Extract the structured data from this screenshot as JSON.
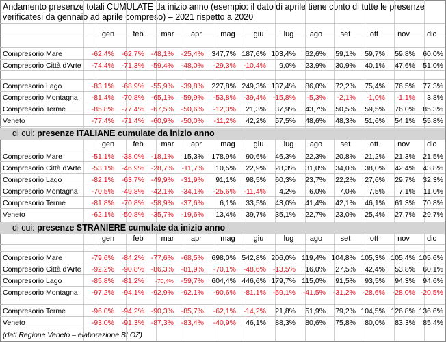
{
  "title": "Andamento presenze totali CUMULATE da inizio anno (esempio: il dato di aprile tiene conto di tutte le presenze verificatesi da gennaio ad aprile compreso) – 2021 rispetto a 2020",
  "months": [
    "gen",
    "feb",
    "mar",
    "apr",
    "mag",
    "giu",
    "lug",
    "ago",
    "set",
    "ott",
    "nov",
    "dic"
  ],
  "sections": [
    {
      "prefix": "",
      "title": "",
      "rows": [
        {
          "label": "Compresorio Mare",
          "values": [
            "-62,4%",
            "-62,7%",
            "-48,1%",
            "-25,4%",
            "347,7%",
            "187,6%",
            "103,4%",
            "62,6%",
            "59,1%",
            "59,7%",
            "59,8%",
            "60,0%"
          ]
        },
        {
          "label": "Compresorio Città d'Arte",
          "values": [
            "-74,4%",
            "-71,3%",
            "-59,4%",
            "-48,0%",
            "-29,3%",
            "-10,4%",
            "9,0%",
            "23,9%",
            "30,9%",
            "40,1%",
            "47,6%",
            "51,0%"
          ]
        },
        {
          "label": "Compresorio Lago",
          "values": [
            "-83,1%",
            "-68,9%",
            "-55,9%",
            "-39,8%",
            "227,8%",
            "249,3%",
            "137,4%",
            "86,0%",
            "72,2%",
            "75,4%",
            "76,5%",
            "77,3%"
          ]
        },
        {
          "label": "Compresorio Montagna",
          "values": [
            "-81,4%",
            "-70,8%",
            "-65,1%",
            "-59,9%",
            "-53,8%",
            "-39,4%",
            "-15,8%",
            "-5,3%",
            "-2,1%",
            "-1,0%",
            "-1,1%",
            "3,8%"
          ]
        },
        {
          "label": "Compresorio Terme",
          "values": [
            "-85,8%",
            "-77,4%",
            "-67,5%",
            "-50,6%",
            "-12,3%",
            "21,3%",
            "37,9%",
            "43,7%",
            "50,5%",
            "59,5%",
            "76,0%",
            "85,3%"
          ]
        },
        {
          "label": "Veneto",
          "values": [
            "-77,4%",
            "-71,4%",
            "-60,9%",
            "-50,0%",
            "-11,2%",
            "42,2%",
            "57,5%",
            "48,6%",
            "48,3%",
            "51,6%",
            "54,1%",
            "55,8%"
          ]
        }
      ]
    },
    {
      "prefix": "di cui: ",
      "title": "presenze ITALIANE cumulate da inizio anno",
      "rows": [
        {
          "label": "Compresorio Mare",
          "values": [
            "-51,1%",
            "-38,0%",
            "-18,1%",
            "15,3%",
            "178,9%",
            "90,6%",
            "46,3%",
            "22,3%",
            "20,8%",
            "21,2%",
            "21,3%",
            "21,5%"
          ]
        },
        {
          "label": "Compresorio Città d'Arte",
          "values": [
            "-53,1%",
            "-46,9%",
            "-28,7%",
            "-11,7%",
            "10,5%",
            "22,9%",
            "28,3%",
            "31,0%",
            "34,0%",
            "38,0%",
            "42,4%",
            "43,8%"
          ]
        },
        {
          "label": "Compresorio Lago",
          "values": [
            "-82,1%",
            "-63,7%",
            "-49,9%",
            "-31,9%",
            "91,1%",
            "98,5%",
            "60,3%",
            "23,7%",
            "22,2%",
            "27,6%",
            "29,7%",
            "32,3%"
          ]
        },
        {
          "label": "Compresorio Montagna",
          "values": [
            "-70,5%",
            "-49,8%",
            "-42,1%",
            "-34,1%",
            "-25,6%",
            "-11,4%",
            "4,2%",
            "6,0%",
            "7,0%",
            "7,5%",
            "7,1%",
            "11,0%"
          ]
        },
        {
          "label": "Compresorio Terme",
          "values": [
            "-81,8%",
            "-70,8%",
            "-58,9%",
            "-37,6%",
            "6,1%",
            "33,5%",
            "43,0%",
            "41,4%",
            "42,1%",
            "46,1%",
            "61,3%",
            "70,8%"
          ]
        },
        {
          "label": "Veneto",
          "values": [
            "-62,1%",
            "-50,8%",
            "-35,7%",
            "-19,6%",
            "13,4%",
            "39,7%",
            "35,1%",
            "22,7%",
            "23,0%",
            "25,4%",
            "27,7%",
            "29,7%"
          ]
        }
      ]
    },
    {
      "prefix": "di cui: ",
      "title": "presenze STRANIERE cumulate da inizio anno",
      "rows": [
        {
          "label": "Compresorio Mare",
          "values": [
            "-79,6%",
            "-84,2%",
            "-77,6%",
            "-68,5%",
            "698,0%",
            "542,8%",
            "206,0%",
            "119,4%",
            "104,8%",
            "105,3%",
            "105,4%",
            "105,6%"
          ]
        },
        {
          "label": "Compresorio Città d'Arte",
          "values": [
            "-92,2%",
            "-90,8%",
            "-86,3%",
            "-81,9%",
            "-70,1%",
            "-48,6%",
            "-13,5%",
            "16,0%",
            "27,5%",
            "42,4%",
            "53,8%",
            "60,1%"
          ]
        },
        {
          "label": "Compresorio Lago",
          "values": [
            "-85,8%",
            "-81,2%",
            "-70,4%",
            "-59,7%",
            "604,4%",
            "446,6%",
            "179,7%",
            "115,0%",
            "91,5%",
            "93,5%",
            "94,3%",
            "94,6%"
          ]
        },
        {
          "label": "Compresorio Montagna",
          "values": [
            "-97,2%",
            "-94,1%",
            "-92,9%",
            "-92,1%",
            "-90,6%",
            "-81,1%",
            "-59,1%",
            "-41,5%",
            "-31,2%",
            "-28,6%",
            "-28,0%",
            "-20,5%"
          ]
        },
        {
          "label": "Compresorio Terme",
          "values": [
            "-96,0%",
            "-94,2%",
            "-90,3%",
            "-85,7%",
            "-62,1%",
            "-14,2%",
            "21,8%",
            "51,9%",
            "79,2%",
            "104,5%",
            "126,8%",
            "136,6%"
          ]
        },
        {
          "label": "Veneto",
          "values": [
            "-93,0%",
            "-91,3%",
            "-87,3%",
            "-83,4%",
            "-40,9%",
            "46,1%",
            "88,3%",
            "80,6%",
            "75,8%",
            "80,0%",
            "83,3%",
            "85,4%"
          ]
        }
      ]
    }
  ],
  "footer": "(dati Regione Veneto – elaborazione BLOZ)"
}
